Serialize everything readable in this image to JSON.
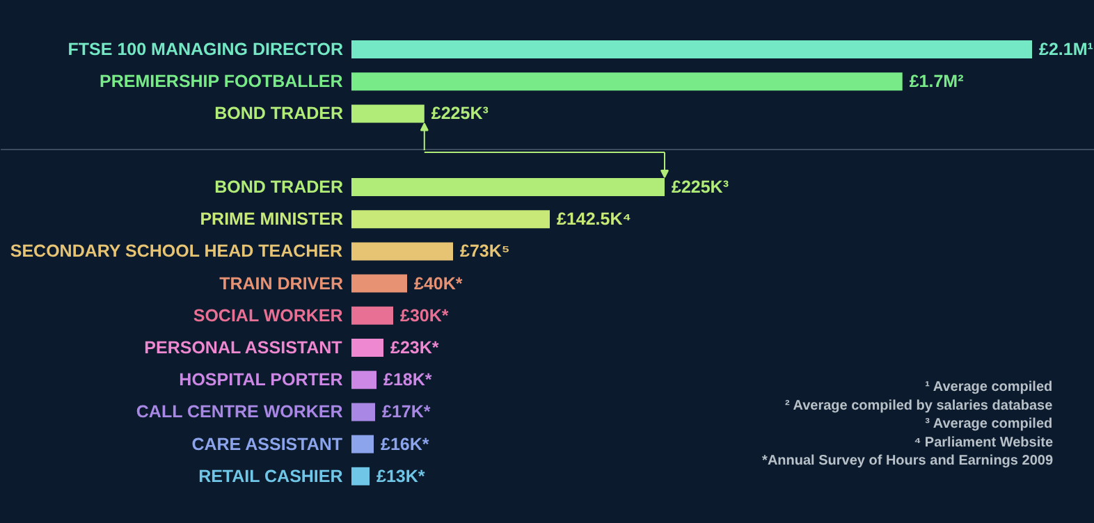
{
  "chart_data": [
    {
      "type": "bar",
      "orientation": "horizontal",
      "categories": [
        "FTSE 100 MANAGING DIRECTOR",
        "PREMIERSHIP FOOTBALLER",
        "BOND TRADER"
      ],
      "values": [
        2100000,
        1700000,
        225000
      ],
      "colors": [
        "#74e8c4",
        "#78ea88",
        "#b2ec78"
      ],
      "value_labels": [
        "£2.1M¹",
        "£1.7M²",
        "£225K³"
      ]
    },
    {
      "type": "bar",
      "orientation": "horizontal",
      "categories": [
        "BOND TRADER",
        "PRIME MINISTER",
        "SECONDARY SCHOOL HEAD TEACHER",
        "TRAIN DRIVER",
        "SOCIAL WORKER",
        "PERSONAL ASSISTANT",
        "HOSPITAL PORTER",
        "CALL CENTRE WORKER",
        "CARE ASSISTANT",
        "RETAIL CASHIER"
      ],
      "values": [
        225000,
        142500,
        73000,
        40000,
        30000,
        23000,
        18000,
        17000,
        16000,
        13000
      ],
      "colors": [
        "#b2ec78",
        "#c8e878",
        "#e6c474",
        "#e89274",
        "#e87094",
        "#ee88d0",
        "#cc88e4",
        "#a888e4",
        "#8ca4ec",
        "#70c6e6"
      ],
      "value_labels": [
        "£225K³",
        "£142.5K⁴",
        "£73K⁵",
        "£40K*",
        "£30K*",
        "£23K*",
        "£18K*",
        "£17K*",
        "£16K*",
        "£13K*"
      ],
      "annotations": [
        "¹ Average compiled",
        "² Average compiled by salaries database",
        "³ Average compiled",
        "⁴ Parliament Website",
        "*Annual Survey of Hours and Earnings 2009"
      ]
    }
  ]
}
